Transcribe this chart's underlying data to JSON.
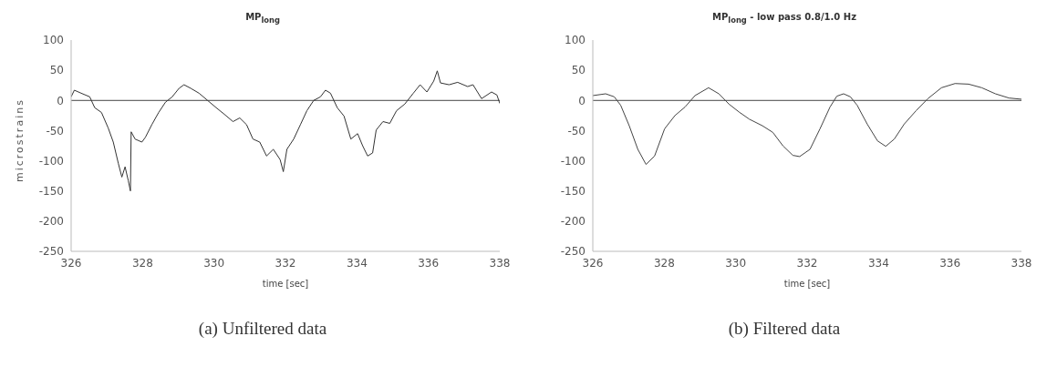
{
  "chart_data": [
    {
      "type": "line",
      "title": "MP$_{long}$",
      "xlabel": "time [sec]",
      "ylabel": "microstrains",
      "annotations": [
        "(a) Unfiltered data"
      ],
      "xlim": [
        326,
        338
      ],
      "xticks": [
        326,
        328,
        330,
        332,
        334,
        336,
        338
      ],
      "ylim": [
        -250,
        100
      ],
      "yticks": [
        -250,
        -200,
        -150,
        -100,
        -50,
        0,
        50,
        100
      ],
      "marker": "none",
      "line_style": "solid",
      "ref_lines": [
        {
          "axis": "y",
          "value": 0
        }
      ],
      "series": [
        {
          "color": "#333333",
          "x": [
            326,
            326.09,
            326.28,
            326.52,
            326.66,
            326.85,
            327.04,
            327.18,
            327.32,
            327.42,
            327.51,
            327.6,
            327.66,
            327.68,
            327.79,
            327.98,
            328.08,
            328.26,
            328.45,
            328.64,
            328.83,
            329.02,
            329.16,
            329.35,
            329.58,
            329.82,
            330.06,
            330.29,
            330.53,
            330.72,
            330.91,
            331.09,
            331.28,
            331.47,
            331.66,
            331.85,
            331.94,
            332.04,
            332.23,
            332.42,
            332.6,
            332.79,
            332.98,
            333.12,
            333.26,
            333.45,
            333.64,
            333.83,
            334.02,
            334.16,
            334.3,
            334.44,
            334.54,
            334.73,
            334.92,
            335.11,
            335.34,
            335.58,
            335.77,
            335.96,
            336.15,
            336.25,
            336.34,
            336.58,
            336.82,
            337.1,
            337.25,
            337.49,
            337.77,
            337.92,
            338
          ],
          "values": [
            6,
            17,
            12,
            6,
            -12,
            -20,
            -46,
            -69,
            -104,
            -127,
            -110,
            -133,
            -150,
            -52,
            -64,
            -69,
            -61,
            -40,
            -20,
            -3,
            6,
            20,
            26,
            20,
            12,
            0,
            -12,
            -23,
            -35,
            -29,
            -40,
            -64,
            -69,
            -92,
            -81,
            -98,
            -118,
            -81,
            -64,
            -40,
            -17,
            0,
            6,
            17,
            12,
            -12,
            -26,
            -64,
            -55,
            -75,
            -92,
            -87,
            -49,
            -35,
            -38,
            -17,
            -6,
            12,
            26,
            14,
            32,
            49,
            29,
            26,
            30,
            23,
            26,
            3,
            14,
            9,
            -5
          ]
        }
      ]
    },
    {
      "type": "line",
      "title": "MP$_{long}$ - low pass 0.8/1.0 Hz",
      "xlabel": "time [sec]",
      "annotations": [
        "(b) Filtered data"
      ],
      "xlim": [
        326,
        338
      ],
      "xticks": [
        326,
        328,
        330,
        332,
        334,
        336,
        338
      ],
      "ylim": [
        -250,
        100
      ],
      "yticks": [
        -250,
        -200,
        -150,
        -100,
        -50,
        0,
        50,
        100
      ],
      "marker": "none",
      "line_style": "solid",
      "ref_lines": [
        {
          "axis": "y",
          "value": 0
        }
      ],
      "series": [
        {
          "color": "#444444",
          "x": [
            326,
            326.36,
            326.6,
            326.78,
            327.02,
            327.26,
            327.49,
            327.73,
            328.01,
            328.3,
            328.58,
            328.86,
            329.24,
            329.53,
            329.81,
            330.09,
            330.38,
            330.75,
            331.04,
            331.32,
            331.6,
            331.79,
            332.08,
            332.36,
            332.64,
            332.83,
            333.02,
            333.21,
            333.4,
            333.68,
            333.97,
            334.2,
            334.44,
            334.72,
            335.05,
            335.38,
            335.76,
            336.14,
            336.52,
            336.89,
            337.27,
            337.65,
            338
          ],
          "values": [
            8,
            11,
            6,
            -8,
            -42,
            -81,
            -106,
            -92,
            -47,
            -25,
            -11,
            8,
            21,
            11,
            -6,
            -19,
            -31,
            -42,
            -53,
            -75,
            -91,
            -93,
            -81,
            -47,
            -11,
            7,
            11,
            6,
            -8,
            -39,
            -67,
            -76,
            -64,
            -39,
            -17,
            3,
            21,
            28,
            27,
            21,
            11,
            4,
            2
          ]
        }
      ]
    }
  ]
}
